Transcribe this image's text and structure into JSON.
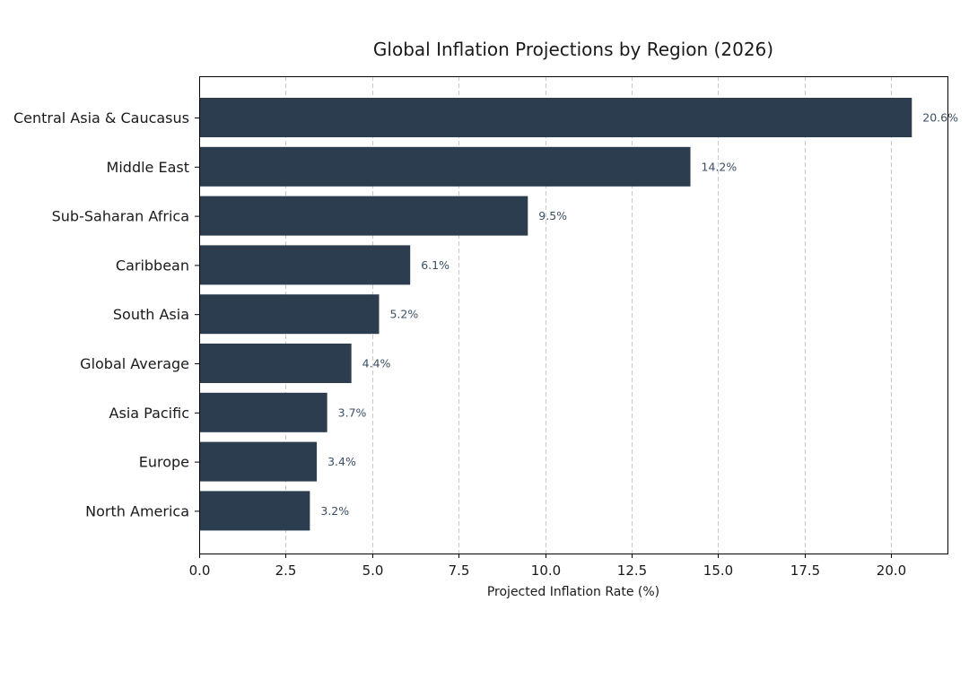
{
  "chart_data": {
    "type": "bar",
    "orientation": "horizontal",
    "title": "Global Inflation Projections by Region (2026)",
    "xlabel": "Projected Inflation Rate (%)",
    "ylabel": "",
    "xlim": [
      0,
      21.63
    ],
    "xticks": [
      0,
      2.5,
      5,
      7.5,
      10,
      12.5,
      15,
      17.5,
      20
    ],
    "xtick_labels": [
      "0.0",
      "2.5",
      "5.0",
      "7.5",
      "10.0",
      "12.5",
      "15.0",
      "17.5",
      "20.0"
    ],
    "grid": true,
    "bar_color": "#2b3d4f",
    "label_color": "#3b4f66",
    "categories": [
      "Central Asia & Caucasus",
      "Middle East",
      "Sub-Saharan Africa",
      "Caribbean",
      "South Asia",
      "Global Average",
      "Asia Pacific",
      "Europe",
      "North America"
    ],
    "values": [
      20.6,
      14.2,
      9.5,
      6.1,
      5.2,
      4.4,
      3.7,
      3.4,
      3.2
    ],
    "value_labels": [
      "20.6%",
      "14.2%",
      "9.5%",
      "6.1%",
      "5.2%",
      "4.4%",
      "3.7%",
      "3.4%",
      "3.2%"
    ]
  }
}
